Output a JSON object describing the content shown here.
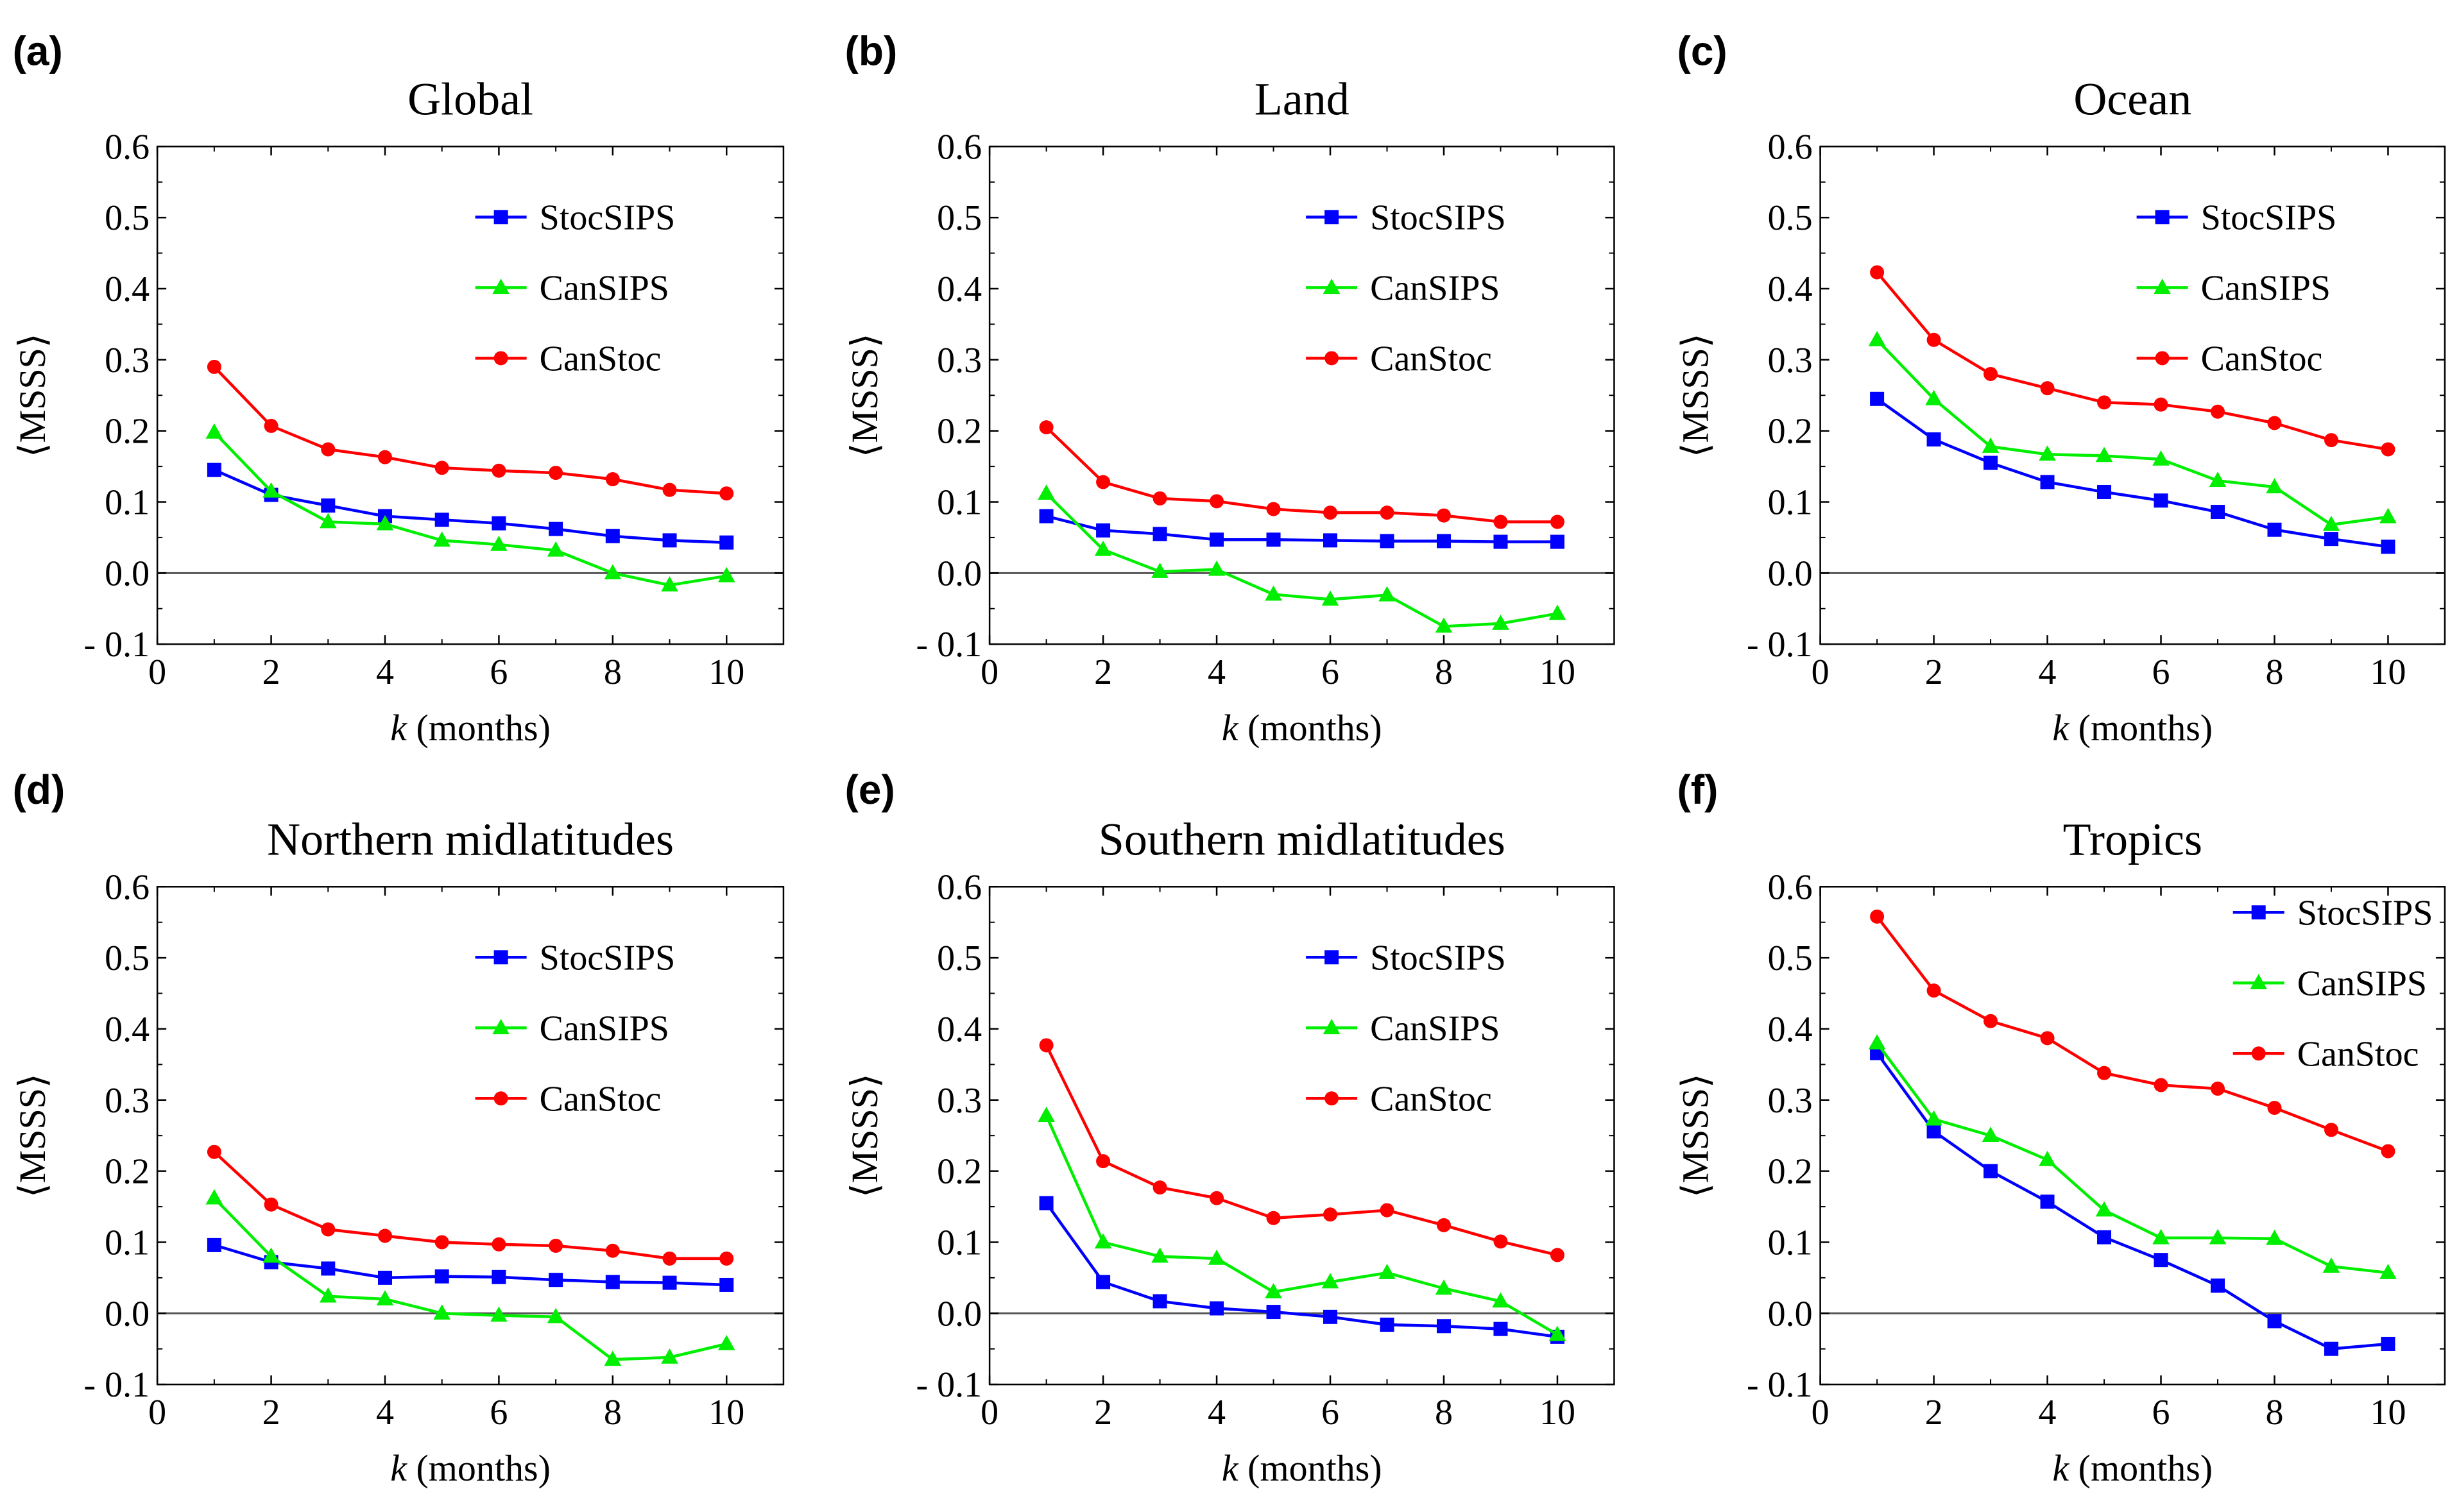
{
  "figure": {
    "y_axis_label": "⟨MSSS⟩",
    "x_label_var": "k",
    "x_label_unit": " (months)"
  },
  "chart_data": [
    {
      "type": "line",
      "letter": "(a)",
      "title": "Global",
      "xlim": [
        0,
        11
      ],
      "ylim": [
        -0.1,
        0.6
      ],
      "xticks": [
        0,
        2,
        4,
        6,
        8,
        10
      ],
      "yticks": [
        "0.6",
        "0.5",
        "0.4",
        "0.3",
        "0.2",
        "0.1",
        "0.0",
        "- 0.1"
      ],
      "ytick_values": [
        0.6,
        0.5,
        0.4,
        0.3,
        0.2,
        0.1,
        0.0,
        -0.1
      ],
      "legend_position": "top-right",
      "x": [
        1,
        2,
        3,
        4,
        5,
        6,
        7,
        8,
        9,
        10
      ],
      "series": [
        {
          "name": "StocSIPS",
          "color": "#0000ff",
          "marker": "square",
          "values": [
            0.145,
            0.11,
            0.095,
            0.08,
            0.075,
            0.07,
            0.062,
            0.052,
            0.046,
            0.043
          ]
        },
        {
          "name": "CanSIPS",
          "color": "#00ee00",
          "marker": "triangle",
          "values": [
            0.198,
            0.115,
            0.072,
            0.069,
            0.046,
            0.04,
            0.032,
            0.0,
            -0.017,
            -0.004
          ]
        },
        {
          "name": "CanStoc",
          "color": "#ff0000",
          "marker": "circle",
          "values": [
            0.29,
            0.207,
            0.174,
            0.163,
            0.148,
            0.144,
            0.141,
            0.132,
            0.117,
            0.112
          ]
        }
      ]
    },
    {
      "type": "line",
      "letter": "(b)",
      "title": "Land",
      "xlim": [
        0,
        11
      ],
      "ylim": [
        -0.1,
        0.6
      ],
      "xticks": [
        0,
        2,
        4,
        6,
        8,
        10
      ],
      "yticks": [
        "0.6",
        "0.5",
        "0.4",
        "0.3",
        "0.2",
        "0.1",
        "0.0",
        "- 0.1"
      ],
      "ytick_values": [
        0.6,
        0.5,
        0.4,
        0.3,
        0.2,
        0.1,
        0.0,
        -0.1
      ],
      "legend_position": "top-right",
      "x": [
        1,
        2,
        3,
        4,
        5,
        6,
        7,
        8,
        9,
        10
      ],
      "series": [
        {
          "name": "StocSIPS",
          "color": "#0000ff",
          "marker": "square",
          "values": [
            0.08,
            0.06,
            0.055,
            0.047,
            0.047,
            0.046,
            0.045,
            0.045,
            0.044,
            0.044
          ]
        },
        {
          "name": "CanSIPS",
          "color": "#00ee00",
          "marker": "triangle",
          "values": [
            0.112,
            0.033,
            0.002,
            0.005,
            -0.03,
            -0.037,
            -0.031,
            -0.075,
            -0.071,
            -0.057
          ]
        },
        {
          "name": "CanStoc",
          "color": "#ff0000",
          "marker": "circle",
          "values": [
            0.205,
            0.128,
            0.105,
            0.101,
            0.09,
            0.085,
            0.085,
            0.081,
            0.072,
            0.072
          ]
        }
      ]
    },
    {
      "type": "line",
      "letter": "(c)",
      "title": "Ocean",
      "xlim": [
        0,
        11
      ],
      "ylim": [
        -0.1,
        0.6
      ],
      "xticks": [
        0,
        2,
        4,
        6,
        8,
        10
      ],
      "yticks": [
        "0.6",
        "0.5",
        "0.4",
        "0.3",
        "0.2",
        "0.1",
        "0.0",
        "- 0.1"
      ],
      "ytick_values": [
        0.6,
        0.5,
        0.4,
        0.3,
        0.2,
        0.1,
        0.0,
        -0.1
      ],
      "legend_position": "top-right",
      "x": [
        1,
        2,
        3,
        4,
        5,
        6,
        7,
        8,
        9,
        10
      ],
      "series": [
        {
          "name": "StocSIPS",
          "color": "#0000ff",
          "marker": "square",
          "values": [
            0.245,
            0.188,
            0.155,
            0.128,
            0.114,
            0.102,
            0.086,
            0.061,
            0.048,
            0.037
          ]
        },
        {
          "name": "CanSIPS",
          "color": "#00ee00",
          "marker": "triangle",
          "values": [
            0.328,
            0.245,
            0.178,
            0.167,
            0.165,
            0.16,
            0.13,
            0.121,
            0.068,
            0.079
          ]
        },
        {
          "name": "CanStoc",
          "color": "#ff0000",
          "marker": "circle",
          "values": [
            0.423,
            0.328,
            0.28,
            0.26,
            0.24,
            0.237,
            0.227,
            0.211,
            0.187,
            0.174
          ]
        }
      ]
    },
    {
      "type": "line",
      "letter": "(d)",
      "title": "Northern midlatitudes",
      "xlim": [
        0,
        11
      ],
      "ylim": [
        -0.1,
        0.6
      ],
      "xticks": [
        0,
        2,
        4,
        6,
        8,
        10
      ],
      "yticks": [
        "0.6",
        "0.5",
        "0.4",
        "0.3",
        "0.2",
        "0.1",
        "0.0",
        "- 0.1"
      ],
      "ytick_values": [
        0.6,
        0.5,
        0.4,
        0.3,
        0.2,
        0.1,
        0.0,
        -0.1
      ],
      "legend_position": "top-right",
      "x": [
        1,
        2,
        3,
        4,
        5,
        6,
        7,
        8,
        9,
        10
      ],
      "series": [
        {
          "name": "StocSIPS",
          "color": "#0000ff",
          "marker": "square",
          "values": [
            0.096,
            0.072,
            0.063,
            0.05,
            0.052,
            0.051,
            0.047,
            0.044,
            0.043,
            0.04
          ]
        },
        {
          "name": "CanSIPS",
          "color": "#00ee00",
          "marker": "triangle",
          "values": [
            0.162,
            0.08,
            0.024,
            0.02,
            0.0,
            -0.003,
            -0.005,
            -0.065,
            -0.062,
            -0.043
          ]
        },
        {
          "name": "CanStoc",
          "color": "#ff0000",
          "marker": "circle",
          "values": [
            0.227,
            0.153,
            0.118,
            0.109,
            0.1,
            0.097,
            0.095,
            0.088,
            0.077,
            0.077
          ]
        }
      ]
    },
    {
      "type": "line",
      "letter": "(e)",
      "title": "Southern midlatitudes",
      "xlim": [
        0,
        11
      ],
      "ylim": [
        -0.1,
        0.6
      ],
      "xticks": [
        0,
        2,
        4,
        6,
        8,
        10
      ],
      "yticks": [
        "0.6",
        "0.5",
        "0.4",
        "0.3",
        "0.2",
        "0.1",
        "0.0",
        "- 0.1"
      ],
      "ytick_values": [
        0.6,
        0.5,
        0.4,
        0.3,
        0.2,
        0.1,
        0.0,
        -0.1
      ],
      "legend_position": "top-right",
      "x": [
        1,
        2,
        3,
        4,
        5,
        6,
        7,
        8,
        9,
        10
      ],
      "series": [
        {
          "name": "StocSIPS",
          "color": "#0000ff",
          "marker": "square",
          "values": [
            0.155,
            0.044,
            0.017,
            0.007,
            0.002,
            -0.005,
            -0.016,
            -0.018,
            -0.022,
            -0.033
          ]
        },
        {
          "name": "CanSIPS",
          "color": "#00ee00",
          "marker": "triangle",
          "values": [
            0.278,
            0.1,
            0.08,
            0.077,
            0.03,
            0.044,
            0.057,
            0.035,
            0.017,
            -0.03
          ]
        },
        {
          "name": "CanStoc",
          "color": "#ff0000",
          "marker": "circle",
          "values": [
            0.377,
            0.214,
            0.177,
            0.162,
            0.134,
            0.139,
            0.145,
            0.124,
            0.101,
            0.082
          ]
        }
      ]
    },
    {
      "type": "line",
      "letter": "(f)",
      "title": "Tropics",
      "xlim": [
        0,
        11
      ],
      "ylim": [
        -0.1,
        0.6
      ],
      "xticks": [
        0,
        2,
        4,
        6,
        8,
        10
      ],
      "yticks": [
        "0.6",
        "0.5",
        "0.4",
        "0.3",
        "0.2",
        "0.1",
        "0.0",
        "- 0.1"
      ],
      "ytick_values": [
        0.6,
        0.5,
        0.4,
        0.3,
        0.2,
        0.1,
        0.0,
        -0.1
      ],
      "legend_position": "top-right",
      "x": [
        1,
        2,
        3,
        4,
        5,
        6,
        7,
        8,
        9,
        10
      ],
      "series": [
        {
          "name": "StocSIPS",
          "color": "#0000ff",
          "marker": "square",
          "values": [
            0.366,
            0.256,
            0.2,
            0.157,
            0.107,
            0.075,
            0.039,
            -0.011,
            -0.05,
            -0.043
          ]
        },
        {
          "name": "CanSIPS",
          "color": "#00ee00",
          "marker": "triangle",
          "values": [
            0.38,
            0.273,
            0.25,
            0.216,
            0.145,
            0.106,
            0.106,
            0.105,
            0.066,
            0.057
          ]
        },
        {
          "name": "CanStoc",
          "color": "#ff0000",
          "marker": "circle",
          "values": [
            0.558,
            0.454,
            0.411,
            0.387,
            0.338,
            0.321,
            0.316,
            0.289,
            0.258,
            0.228
          ]
        }
      ]
    }
  ]
}
